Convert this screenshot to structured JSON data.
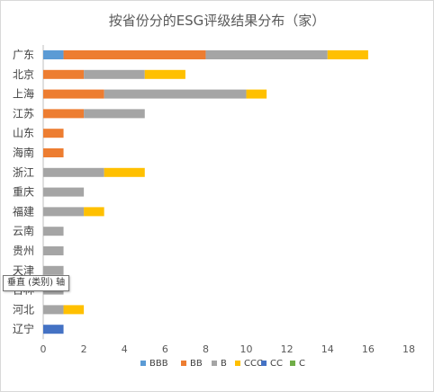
{
  "chart_data": {
    "type": "bar",
    "orientation": "horizontal",
    "stacked": true,
    "title": "按省份分的ESG评级结果分布（家）",
    "categories": [
      "广东",
      "北京",
      "上海",
      "江苏",
      "山东",
      "海南",
      "浙江",
      "重庆",
      "福建",
      "云南",
      "贵州",
      "天津",
      "吉林",
      "河北",
      "辽宁"
    ],
    "series": [
      {
        "name": "BBB",
        "color": "#5b9bd5",
        "values": [
          1,
          0,
          0,
          0,
          0,
          0,
          0,
          0,
          0,
          0,
          0,
          0,
          0,
          0,
          0
        ]
      },
      {
        "name": "BB",
        "color": "#ed7d31",
        "values": [
          7,
          2,
          3,
          2,
          1,
          1,
          0,
          0,
          0,
          0,
          0,
          0,
          0,
          0,
          0
        ]
      },
      {
        "name": "B",
        "color": "#a5a5a5",
        "values": [
          6,
          3,
          7,
          3,
          0,
          0,
          3,
          2,
          2,
          1,
          1,
          1,
          1,
          1,
          0
        ]
      },
      {
        "name": "CCC",
        "color": "#ffc000",
        "values": [
          2,
          2,
          1,
          0,
          0,
          0,
          2,
          0,
          1,
          0,
          0,
          0,
          0,
          1,
          0
        ]
      },
      {
        "name": "CC",
        "color": "#4472c4",
        "values": [
          0,
          0,
          0,
          0,
          0,
          0,
          0,
          0,
          0,
          0,
          0,
          0,
          0,
          0,
          1
        ]
      },
      {
        "name": "C",
        "color": "#70ad47",
        "values": [
          0,
          0,
          0,
          0,
          0,
          0,
          0,
          0,
          0,
          0,
          0,
          0,
          0,
          0,
          0
        ]
      }
    ],
    "xlim": [
      0,
      18
    ],
    "xticks": [
      0,
      2,
      4,
      6,
      8,
      10,
      12,
      14,
      16,
      18
    ],
    "grid": false,
    "legend_position": "bottom"
  },
  "tooltip": {
    "text": "垂直 (类别) 轴"
  }
}
